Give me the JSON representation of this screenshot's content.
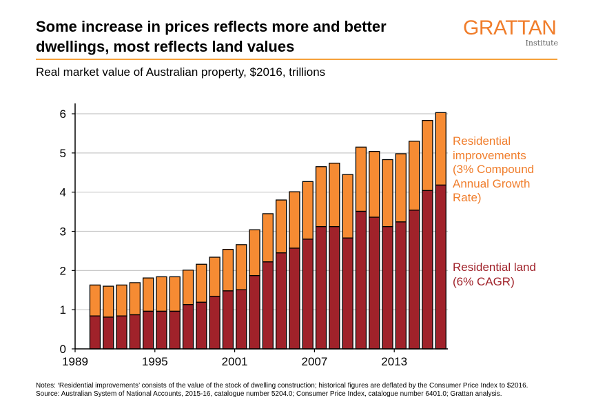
{
  "header": {
    "title": "Some increase in prices reflects more and better dwellings, most reflects land values",
    "subtitle": "Real market value of Australian property, $2016, trillions",
    "logo_main": "GRATTAN",
    "logo_sub": "Institute"
  },
  "chart_data": {
    "type": "bar",
    "stacked": true,
    "title": "Real market value of Australian property, $2016, trillions",
    "xlabel": "",
    "ylabel": "",
    "ylim": [
      0,
      6.5
    ],
    "yticks": [
      "0",
      "1",
      "2",
      "3",
      "4",
      "5",
      "6"
    ],
    "xticks": [
      "1989",
      "1995",
      "2001",
      "2007",
      "2013"
    ],
    "grid": true,
    "categories": [
      1990,
      1991,
      1992,
      1993,
      1994,
      1995,
      1996,
      1997,
      1998,
      1999,
      2000,
      2001,
      2002,
      2003,
      2004,
      2005,
      2006,
      2007,
      2008,
      2009,
      2010,
      2011,
      2012,
      2013,
      2014,
      2015,
      2016
    ],
    "series": [
      {
        "name": "Residential land (6% CAGR)",
        "color": "#a0222a",
        "values": [
          0.84,
          0.81,
          0.84,
          0.87,
          0.96,
          0.96,
          0.96,
          1.13,
          1.19,
          1.34,
          1.48,
          1.51,
          1.87,
          2.22,
          2.45,
          2.57,
          2.8,
          3.12,
          3.12,
          2.83,
          3.51,
          3.36,
          3.12,
          3.24,
          3.54,
          4.04,
          4.18
        ]
      },
      {
        "name": "Residential improvements (3% Compound Annual Growth Rate)",
        "color": "#f68b33",
        "values": [
          0.79,
          0.79,
          0.79,
          0.82,
          0.85,
          0.88,
          0.88,
          0.88,
          0.97,
          1.0,
          1.06,
          1.15,
          1.17,
          1.23,
          1.35,
          1.44,
          1.47,
          1.53,
          1.62,
          1.62,
          1.64,
          1.68,
          1.71,
          1.74,
          1.76,
          1.79,
          1.85
        ]
      }
    ],
    "legend": {
      "improvements": [
        "Residential",
        "improvements",
        "(3% Compound",
        "Annual Growth",
        "Rate)"
      ],
      "land": [
        "Residential land",
        "(6% CAGR)"
      ],
      "placement": "right"
    }
  },
  "footer": {
    "notes": "Notes: ‘Residential improvements’ consists of the value of the stock of dwelling construction; historical figures are deflated by the Consumer Price Index to $2016.",
    "source": "Source: Australian System of National Accounts, 2015-16, catalogue number 5204.0; Consumer Price Index, catalogue number 6401.0; Grattan analysis."
  }
}
